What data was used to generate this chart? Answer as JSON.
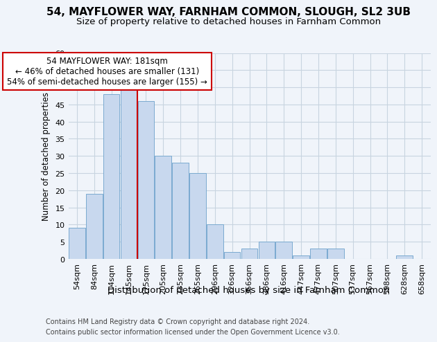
{
  "title1": "54, MAYFLOWER WAY, FARNHAM COMMON, SLOUGH, SL2 3UB",
  "title2": "Size of property relative to detached houses in Farnham Common",
  "xlabel": "Distribution of detached houses by size in Farnham Common",
  "ylabel": "Number of detached properties",
  "categories": [
    "54sqm",
    "84sqm",
    "114sqm",
    "145sqm",
    "175sqm",
    "205sqm",
    "235sqm",
    "265sqm",
    "296sqm",
    "326sqm",
    "356sqm",
    "386sqm",
    "416sqm",
    "447sqm",
    "477sqm",
    "507sqm",
    "537sqm",
    "567sqm",
    "598sqm",
    "628sqm",
    "658sqm"
  ],
  "values": [
    9,
    19,
    48,
    50,
    46,
    30,
    28,
    25,
    10,
    2,
    3,
    5,
    5,
    1,
    3,
    3,
    0,
    0,
    0,
    1,
    0
  ],
  "bar_color": "#c8d8ee",
  "bar_edge_color": "#7aaad0",
  "property_label": "54 MAYFLOWER WAY: 181sqm",
  "annotation_line1": "← 46% of detached houses are smaller (131)",
  "annotation_line2": "54% of semi-detached houses are larger (155) →",
  "vline_position": 3.5,
  "vline_color": "#cc0000",
  "ylim": [
    0,
    60
  ],
  "yticks": [
    0,
    5,
    10,
    15,
    20,
    25,
    30,
    35,
    40,
    45,
    50,
    55,
    60
  ],
  "footer1": "Contains HM Land Registry data © Crown copyright and database right 2024.",
  "footer2": "Contains public sector information licensed under the Open Government Licence v3.0.",
  "bg_color": "#f0f4fa",
  "plot_bg_color": "#f0f4fa",
  "grid_color": "#c8d4e0",
  "title1_fontsize": 11,
  "title2_fontsize": 9.5,
  "xlabel_fontsize": 9.5,
  "ylabel_fontsize": 8.5,
  "tick_fontsize": 8,
  "footer_fontsize": 7,
  "annot_fontsize": 8.5
}
